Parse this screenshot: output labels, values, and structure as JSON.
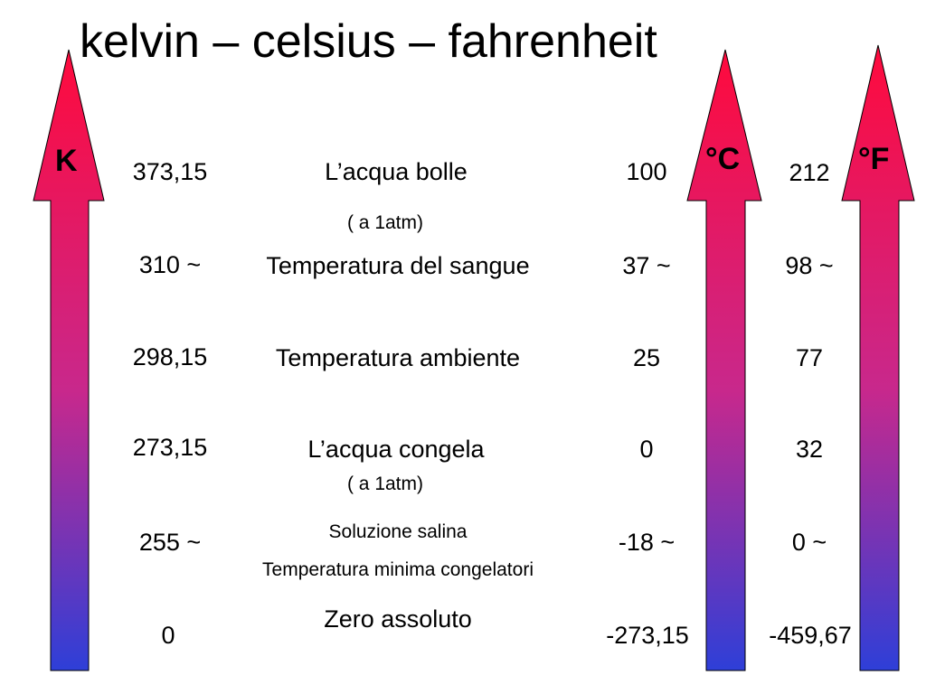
{
  "title": "kelvin – celsius – fahrenheit",
  "arrow_gradient": {
    "top_color": "#ff0a3c",
    "middle_color": "#c8288c",
    "bottom_color": "#2e3fd8"
  },
  "scales": {
    "kelvin": "K",
    "celsius": "°C",
    "fahrenheit": "°F"
  },
  "rows": [
    {
      "kelvin": "373,15",
      "description": "L’acqua bolle",
      "note": "( a 1atm)",
      "celsius": "100",
      "fahrenheit": "212"
    },
    {
      "kelvin": "310 ~",
      "description": "Temperatura del sangue",
      "celsius": "37 ~",
      "fahrenheit": "98 ~"
    },
    {
      "kelvin": "298,15",
      "description": "Temperatura ambiente",
      "celsius": "25",
      "fahrenheit": "77"
    },
    {
      "kelvin": "273,15",
      "description": "L’acqua congela",
      "note": "( a 1atm)",
      "celsius": "0",
      "fahrenheit": "32"
    },
    {
      "kelvin": "255 ~",
      "description": "Soluzione salina",
      "note": "Temperatura minima congelatori",
      "celsius": "-18 ~",
      "fahrenheit": "0 ~"
    },
    {
      "kelvin": "0",
      "description": "Zero assoluto",
      "celsius": "-273,15",
      "fahrenheit": "-459,67"
    }
  ]
}
